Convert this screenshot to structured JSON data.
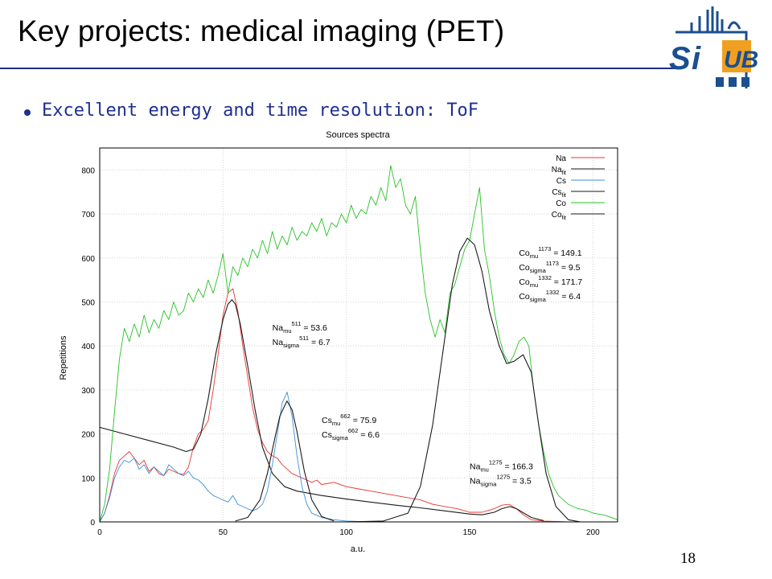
{
  "slide": {
    "title": "Key projects: medical imaging (PET)",
    "bullet": "Excellent energy and time resolution: ToF",
    "page_number": "18",
    "logo_text": "SiUB"
  },
  "colors": {
    "title_rule": "#1f2f8c",
    "bullet": "#1e2f90",
    "logo_blue": "#1b4f8f",
    "logo_orange": "#f0a020",
    "na": "#e8342c",
    "cs": "#3a8fd8",
    "co": "#26c226",
    "fit": "#1a1a1a"
  },
  "chart_data": {
    "type": "line",
    "title": "Sources spectra",
    "xlabel": "a.u.",
    "ylabel": "Repetitions",
    "xlim": [
      0,
      210
    ],
    "ylim": [
      0,
      850
    ],
    "xticks": [
      0,
      50,
      100,
      150,
      200
    ],
    "yticks": [
      0,
      100,
      200,
      300,
      400,
      500,
      600,
      700,
      800
    ],
    "grid": true,
    "legend_position": "top-right",
    "series": [
      {
        "name": "Na",
        "color": "#e8342c",
        "kind": "data",
        "x": [
          0,
          2,
          4,
          6,
          8,
          10,
          12,
          14,
          16,
          18,
          20,
          22,
          24,
          26,
          28,
          30,
          32,
          34,
          36,
          38,
          40,
          42,
          44,
          46,
          48,
          50,
          52,
          54,
          56,
          58,
          60,
          62,
          64,
          66,
          68,
          70,
          72,
          74,
          76,
          78,
          80,
          82,
          84,
          86,
          88,
          90,
          95,
          100,
          105,
          110,
          115,
          120,
          125,
          130,
          135,
          140,
          145,
          150,
          155,
          160,
          163,
          166,
          169,
          172,
          175,
          180,
          190,
          200,
          210
        ],
        "y": [
          0,
          20,
          60,
          110,
          140,
          150,
          160,
          145,
          130,
          140,
          115,
          125,
          110,
          105,
          120,
          115,
          110,
          108,
          125,
          170,
          200,
          210,
          230,
          300,
          380,
          470,
          520,
          530,
          480,
          400,
          330,
          260,
          210,
          180,
          160,
          150,
          145,
          130,
          120,
          110,
          105,
          100,
          95,
          90,
          95,
          85,
          90,
          80,
          75,
          70,
          65,
          60,
          55,
          50,
          40,
          35,
          30,
          22,
          22,
          30,
          38,
          40,
          30,
          15,
          5,
          2,
          0,
          0,
          0
        ]
      },
      {
        "name": "Na fit",
        "color": "#1a1a1a",
        "kind": "fit",
        "x": [
          0,
          10,
          20,
          30,
          35,
          38,
          41,
          44,
          47,
          50,
          52,
          53.6,
          55,
          57,
          60,
          63,
          66,
          70,
          75,
          80,
          90,
          100,
          110,
          120,
          130,
          140,
          150,
          155,
          160,
          163,
          166.3,
          169,
          172,
          175,
          180
        ],
        "y": [
          215,
          200,
          185,
          170,
          160,
          165,
          200,
          280,
          380,
          460,
          495,
          505,
          495,
          450,
          355,
          255,
          170,
          110,
          80,
          70,
          60,
          52,
          45,
          38,
          32,
          25,
          18,
          16,
          22,
          30,
          35,
          30,
          20,
          10,
          3
        ]
      },
      {
        "name": "Cs",
        "color": "#3a8fd8",
        "kind": "data",
        "x": [
          0,
          2,
          4,
          6,
          8,
          10,
          12,
          14,
          16,
          18,
          20,
          22,
          24,
          26,
          28,
          30,
          32,
          34,
          36,
          38,
          40,
          42,
          44,
          46,
          48,
          50,
          52,
          54,
          56,
          58,
          60,
          62,
          64,
          66,
          68,
          70,
          72,
          74,
          76,
          78,
          80,
          82,
          84,
          86,
          88,
          90,
          95,
          100,
          110
        ],
        "y": [
          0,
          20,
          55,
          100,
          125,
          140,
          135,
          145,
          120,
          130,
          110,
          125,
          115,
          105,
          130,
          120,
          110,
          105,
          115,
          100,
          95,
          85,
          70,
          60,
          55,
          50,
          45,
          60,
          40,
          35,
          30,
          25,
          30,
          40,
          70,
          130,
          200,
          270,
          295,
          240,
          150,
          80,
          40,
          20,
          15,
          10,
          5,
          2,
          0
        ]
      },
      {
        "name": "Cs fit",
        "color": "#1a1a1a",
        "kind": "fit",
        "x": [
          55,
          60,
          65,
          68,
          71,
          73,
          75.9,
          78,
          80,
          83,
          86,
          90,
          95
        ],
        "y": [
          2,
          10,
          50,
          110,
          190,
          240,
          275,
          255,
          205,
          115,
          50,
          12,
          2
        ]
      },
      {
        "name": "Co",
        "color": "#26c226",
        "kind": "data",
        "x": [
          0,
          2,
          4,
          6,
          8,
          10,
          12,
          14,
          16,
          18,
          20,
          22,
          24,
          26,
          28,
          30,
          32,
          34,
          36,
          38,
          40,
          42,
          44,
          46,
          48,
          50,
          52,
          54,
          56,
          58,
          60,
          62,
          64,
          66,
          68,
          70,
          72,
          74,
          76,
          78,
          80,
          82,
          84,
          86,
          88,
          90,
          92,
          94,
          96,
          98,
          100,
          102,
          104,
          106,
          108,
          110,
          112,
          114,
          116,
          118,
          120,
          122,
          124,
          126,
          128,
          130,
          132,
          134,
          136,
          138,
          140,
          142,
          144,
          146,
          148,
          150,
          152,
          154,
          156,
          158,
          160,
          162,
          164,
          166,
          168,
          170,
          172,
          174,
          176,
          178,
          180,
          182,
          184,
          186,
          188,
          190,
          192,
          194,
          196,
          198,
          200,
          205,
          210
        ],
        "y": [
          0,
          40,
          120,
          250,
          370,
          440,
          410,
          450,
          420,
          470,
          430,
          460,
          440,
          480,
          460,
          500,
          470,
          480,
          520,
          500,
          530,
          510,
          550,
          520,
          560,
          610,
          520,
          580,
          560,
          600,
          580,
          620,
          600,
          640,
          610,
          660,
          620,
          650,
          630,
          670,
          640,
          660,
          650,
          680,
          660,
          690,
          650,
          680,
          670,
          700,
          680,
          720,
          690,
          710,
          700,
          740,
          720,
          760,
          730,
          810,
          760,
          780,
          720,
          700,
          740,
          620,
          520,
          460,
          420,
          460,
          430,
          520,
          540,
          580,
          620,
          640,
          700,
          760,
          620,
          560,
          480,
          420,
          380,
          360,
          380,
          410,
          420,
          400,
          300,
          220,
          160,
          110,
          80,
          60,
          50,
          40,
          35,
          30,
          28,
          25,
          20,
          15,
          5
        ]
      },
      {
        "name": "Co fit",
        "color": "#1a1a1a",
        "kind": "fit",
        "x": [
          100,
          115,
          125,
          130,
          135,
          140,
          143,
          146,
          149.1,
          152,
          155,
          158,
          162,
          165,
          168,
          171.7,
          175,
          178,
          181,
          185,
          190,
          195
        ],
        "y": [
          0,
          2,
          20,
          80,
          220,
          420,
          540,
          615,
          645,
          630,
          570,
          480,
          400,
          360,
          365,
          380,
          340,
          220,
          110,
          35,
          5,
          0
        ]
      }
    ],
    "legend": [
      "Na",
      "Na fit",
      "Cs",
      "Cs fit",
      "Co",
      "Co fit"
    ],
    "annotations": [
      {
        "lines": [
          "Na mu 511 = 53.6",
          "Na sigma 511 = 6.7"
        ],
        "at": [
          70,
          435
        ]
      },
      {
        "lines": [
          "Cs mu 662 = 75.9",
          "Cs sigma 662 = 6.6"
        ],
        "at": [
          90,
          225
        ]
      },
      {
        "lines": [
          "Na mu 1275 = 166.3",
          "Na sigma 1275 = 3.5"
        ],
        "at": [
          150,
          120
        ]
      },
      {
        "lines": [
          "Co mu 1173 = 149.1",
          "Co sigma 1173 = 9.5",
          "Co mu 1332 = 171.7",
          "Co sigma 1332 = 6.4"
        ],
        "at": [
          170,
          605
        ]
      }
    ]
  }
}
